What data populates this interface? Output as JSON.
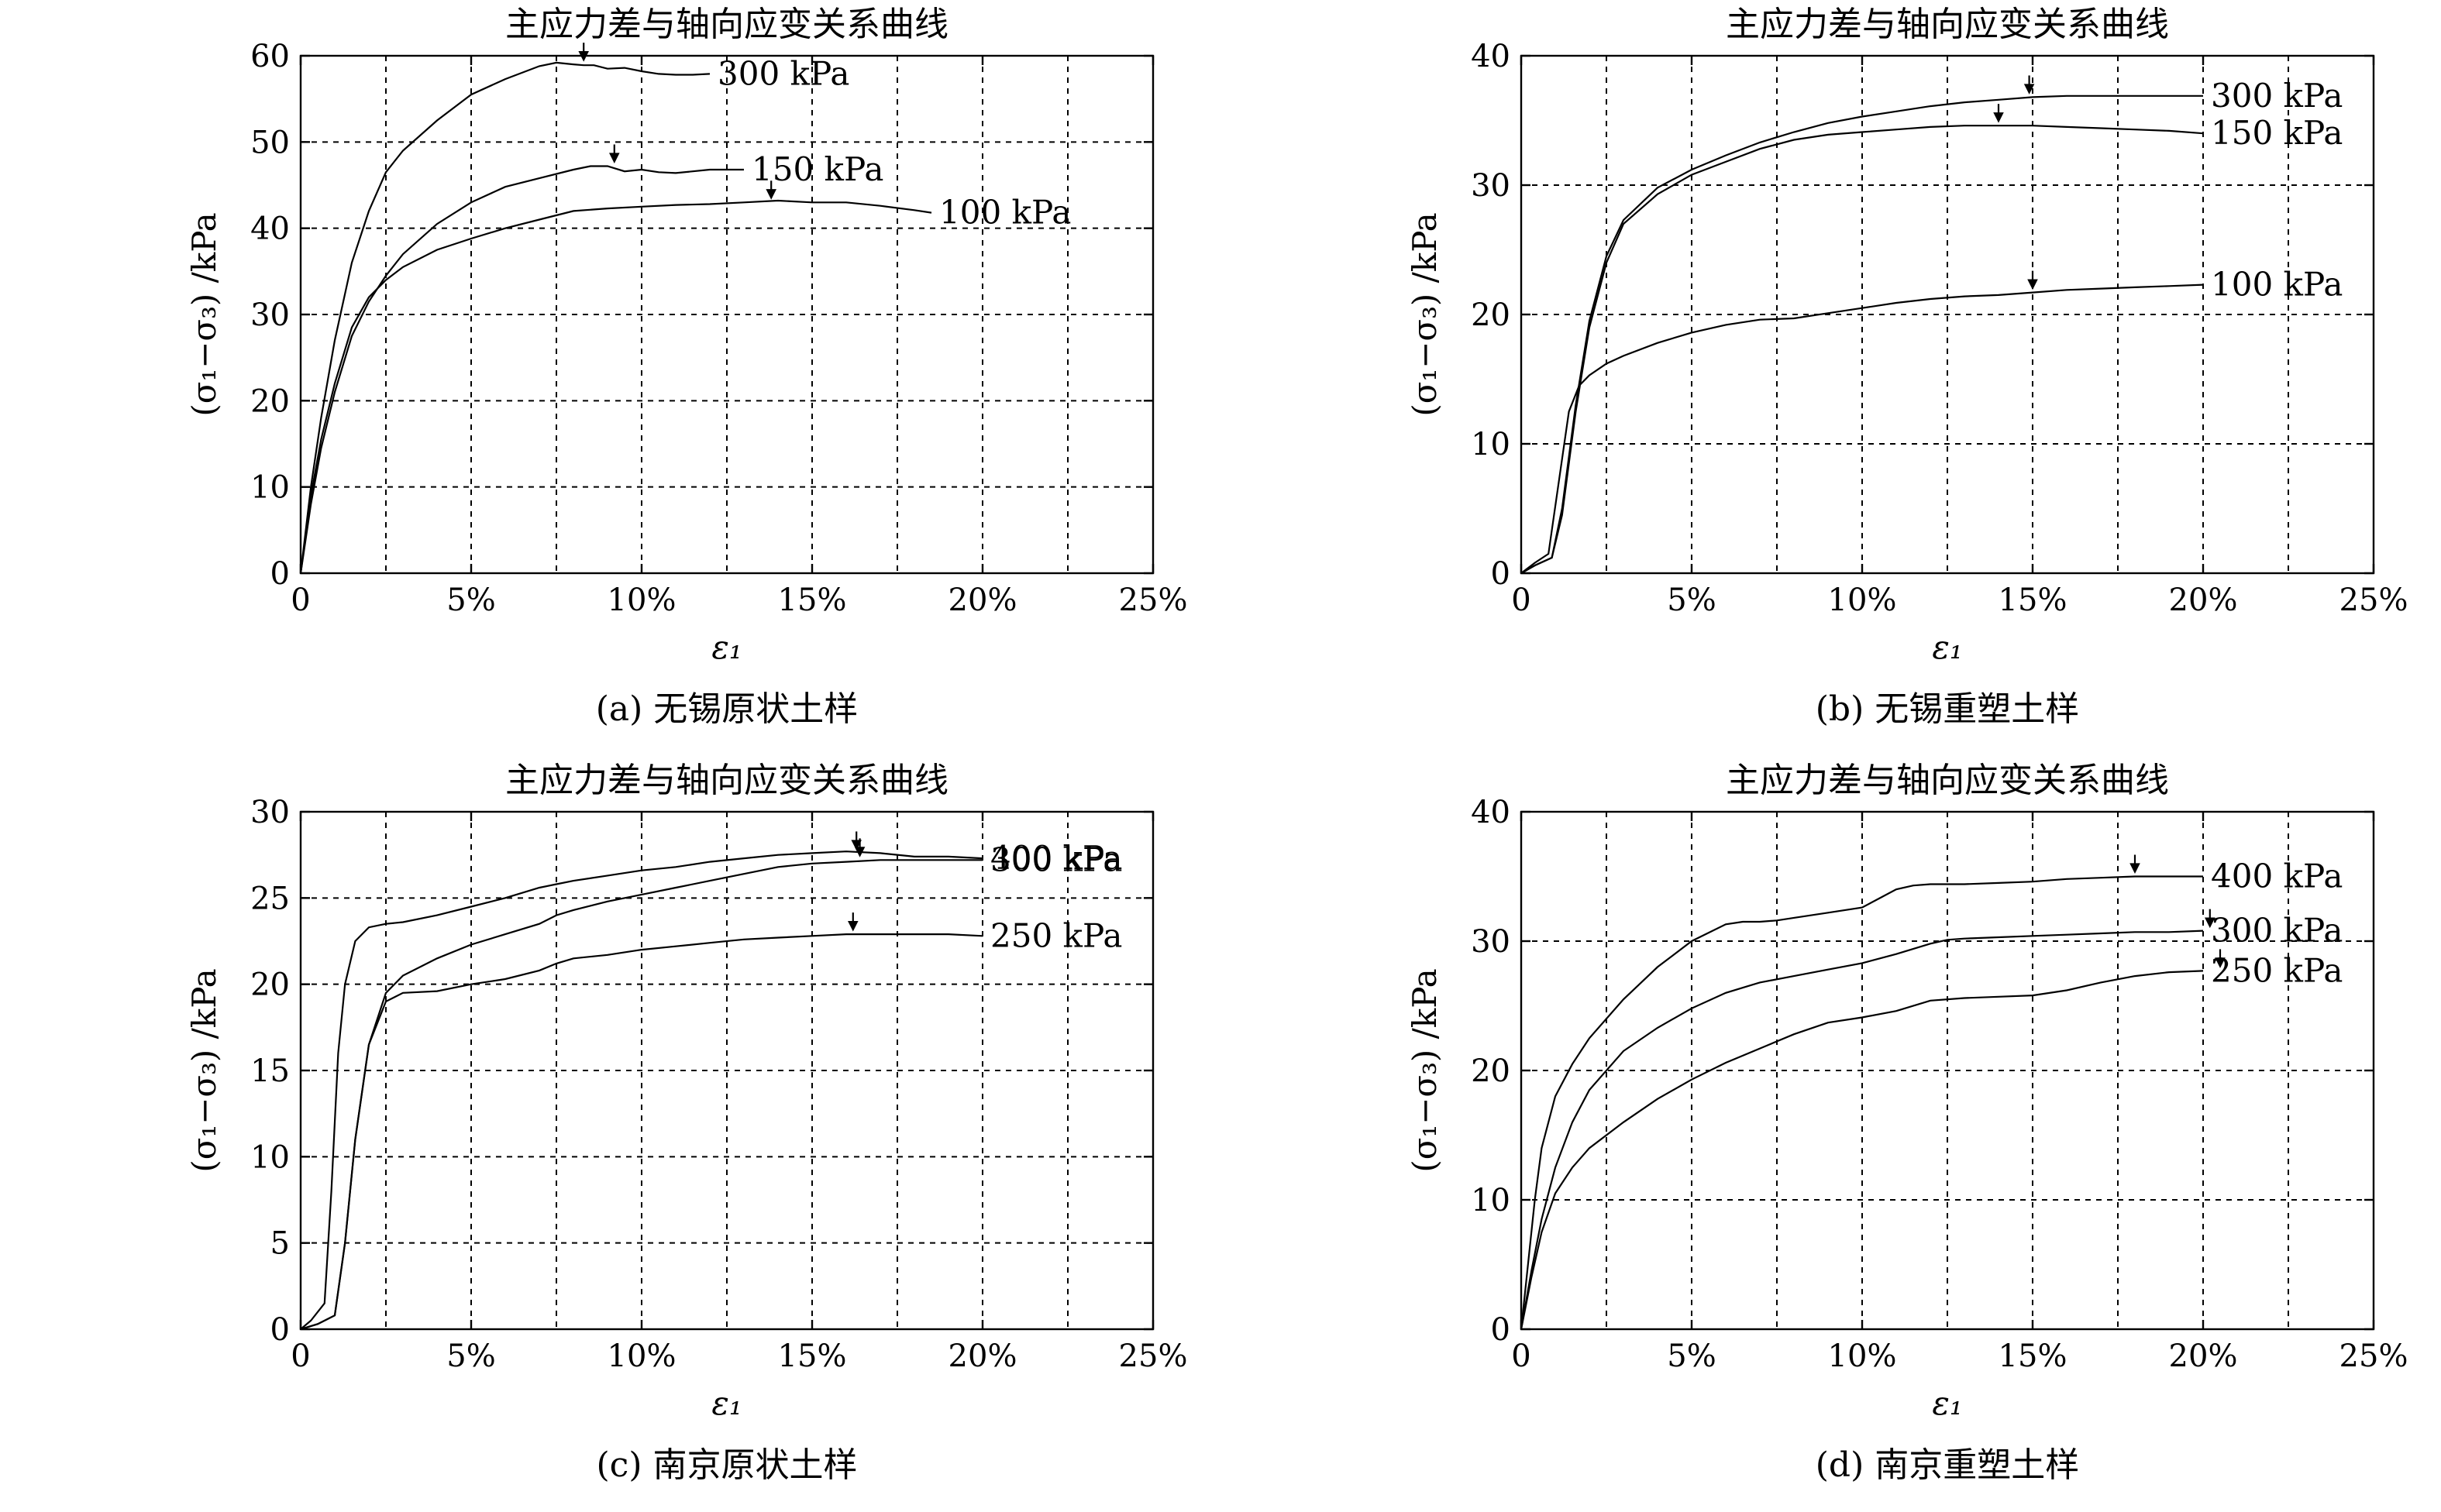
{
  "chart_data": [
    {
      "id": "a",
      "type": "line",
      "title": "主应力差与轴向应变关系曲线",
      "caption": "(a) 无锡原状土样",
      "xlabel": "ε₁",
      "ylabel": "(σ₁−σ₃) /kPa",
      "xlim": [
        0,
        25
      ],
      "ylim": [
        0,
        60
      ],
      "xticks": [
        0,
        5,
        10,
        15,
        20,
        25
      ],
      "xtick_labels": [
        "0",
        "5%",
        "10%",
        "15%",
        "20%",
        "25%"
      ],
      "yticks": [
        0,
        10,
        20,
        30,
        40,
        50,
        60
      ],
      "ytick_labels": [
        "0",
        "10",
        "20",
        "30",
        "40",
        "50",
        "60"
      ],
      "grid": true,
      "series": [
        {
          "name": "300 kPa",
          "x": [
            0,
            0.3,
            0.6,
            1.0,
            1.5,
            2.0,
            2.5,
            3.0,
            4.0,
            5.0,
            6.0,
            7.0,
            7.5,
            8.0,
            8.3,
            8.6,
            9.0,
            9.5,
            10.0,
            10.5,
            11.0,
            11.5,
            12.0
          ],
          "y": [
            0,
            10,
            18,
            27,
            36,
            42,
            46.5,
            49,
            52.5,
            55.5,
            57.3,
            58.8,
            59.2,
            59,
            58.9,
            58.9,
            58.5,
            58.6,
            58.2,
            57.9,
            57.8,
            57.8,
            57.9
          ]
        },
        {
          "name": "150 kPa",
          "x": [
            0,
            0.3,
            0.6,
            1.0,
            1.5,
            2.0,
            2.5,
            3.0,
            4.0,
            5.0,
            6.0,
            7.0,
            8.0,
            8.5,
            9.0,
            9.5,
            10.0,
            10.5,
            11.0,
            12.0,
            13.0
          ],
          "y": [
            0,
            8,
            14.5,
            21,
            27.5,
            31.5,
            34.5,
            37,
            40.5,
            43,
            44.8,
            45.8,
            46.8,
            47.2,
            47.2,
            46.6,
            46.8,
            46.5,
            46.4,
            46.8,
            46.8
          ]
        },
        {
          "name": "100 kPa",
          "x": [
            0,
            0.3,
            0.6,
            1.0,
            1.5,
            2.0,
            2.5,
            3.0,
            4.0,
            5.0,
            6.0,
            7.0,
            8.0,
            9.0,
            10.0,
            11.0,
            12.0,
            13.0,
            14.0,
            15.0,
            16.0,
            17.0,
            18.0,
            18.5
          ],
          "y": [
            0,
            9,
            15.5,
            22,
            28.5,
            32,
            34,
            35.5,
            37.5,
            38.8,
            40,
            41,
            42,
            42.3,
            42.5,
            42.7,
            42.8,
            43,
            43.2,
            43,
            43,
            42.6,
            42.1,
            41.8
          ]
        }
      ],
      "peak_markers": [
        {
          "series": "300 kPa",
          "x": 8.3,
          "y": 59
        },
        {
          "series": "150 kPa",
          "x": 9.2,
          "y": 47.2
        },
        {
          "series": "100 kPa",
          "x": 13.8,
          "y": 43
        }
      ]
    },
    {
      "id": "b",
      "type": "line",
      "title": "主应力差与轴向应变关系曲线",
      "caption": "(b) 无锡重塑土样",
      "xlabel": "ε₁",
      "ylabel": "(σ₁−σ₃) /kPa",
      "xlim": [
        0,
        25
      ],
      "ylim": [
        0,
        40
      ],
      "xticks": [
        0,
        5,
        10,
        15,
        20,
        25
      ],
      "xtick_labels": [
        "0",
        "5%",
        "10%",
        "15%",
        "20%",
        "25%"
      ],
      "yticks": [
        0,
        10,
        20,
        30,
        40
      ],
      "ytick_labels": [
        "0",
        "10",
        "20",
        "30",
        "40"
      ],
      "grid": true,
      "series": [
        {
          "name": "300 kPa",
          "x": [
            0,
            0.4,
            0.9,
            1.2,
            1.6,
            2.0,
            2.5,
            3.0,
            4.0,
            5.0,
            6.0,
            7.0,
            8.0,
            9.0,
            10.0,
            11.0,
            12.0,
            13.0,
            14.0,
            15.0,
            16.0,
            17.0,
            18.0,
            19.0,
            20.0
          ],
          "y": [
            0,
            0.6,
            1.2,
            5,
            13,
            19.5,
            24.5,
            27.3,
            29.8,
            31.2,
            32.3,
            33.3,
            34.1,
            34.8,
            35.3,
            35.7,
            36.1,
            36.4,
            36.6,
            36.8,
            36.9,
            36.9,
            36.9,
            36.9,
            36.9
          ]
        },
        {
          "name": "150 kPa",
          "x": [
            0,
            0.4,
            0.9,
            1.2,
            1.6,
            2.0,
            2.5,
            3.0,
            4.0,
            5.0,
            6.0,
            7.0,
            8.0,
            9.0,
            10.0,
            11.0,
            12.0,
            13.0,
            14.0,
            15.0,
            16.0,
            17.0,
            18.0,
            19.0,
            20.0
          ],
          "y": [
            0,
            0.6,
            1.2,
            4.5,
            12.5,
            19,
            24,
            27,
            29.3,
            30.8,
            31.8,
            32.8,
            33.5,
            33.9,
            34.1,
            34.3,
            34.5,
            34.6,
            34.6,
            34.6,
            34.5,
            34.4,
            34.3,
            34.2,
            34.0
          ]
        },
        {
          "name": "100 kPa",
          "x": [
            0,
            0.4,
            0.8,
            1.1,
            1.4,
            1.7,
            2.0,
            2.5,
            3.0,
            4.0,
            5.0,
            6.0,
            7.0,
            8.0,
            9.0,
            10.0,
            11.0,
            12.0,
            13.0,
            14.0,
            15.0,
            16.0,
            17.0,
            18.0,
            19.0,
            20.0
          ],
          "y": [
            0,
            0.8,
            1.5,
            7,
            12.5,
            14.5,
            15.3,
            16.2,
            16.8,
            17.8,
            18.6,
            19.2,
            19.6,
            19.7,
            20.1,
            20.5,
            20.9,
            21.2,
            21.4,
            21.5,
            21.7,
            21.9,
            22.0,
            22.1,
            22.2,
            22.3
          ]
        }
      ],
      "peak_markers": [
        {
          "series": "300 kPa",
          "x": 14.9,
          "y": 36.8
        },
        {
          "series": "150 kPa",
          "x": 14.0,
          "y": 34.6
        },
        {
          "series": "100 kPa",
          "x": 15.0,
          "y": 21.7
        }
      ]
    },
    {
      "id": "c",
      "type": "line",
      "title": "主应力差与轴向应变关系曲线",
      "caption": "(c) 南京原状土样",
      "xlabel": "ε₁",
      "ylabel": "(σ₁−σ₃) /kPa",
      "xlim": [
        0,
        25
      ],
      "ylim": [
        0,
        30
      ],
      "xticks": [
        0,
        5,
        10,
        15,
        20,
        25
      ],
      "xtick_labels": [
        "0",
        "5%",
        "10%",
        "15%",
        "20%",
        "25%"
      ],
      "yticks": [
        0,
        5,
        10,
        15,
        20,
        25,
        30
      ],
      "ytick_labels": [
        "0",
        "5",
        "10",
        "15",
        "20",
        "25",
        "30"
      ],
      "grid": true,
      "series": [
        {
          "name": "400 kPa",
          "x": [
            0,
            0.3,
            0.7,
            0.9,
            1.1,
            1.3,
            1.6,
            2.0,
            2.5,
            3.0,
            4.0,
            5.0,
            6.0,
            7.0,
            7.5,
            8.0,
            9.0,
            10.0,
            11.0,
            12.0,
            13.0,
            14.0,
            15.0,
            16.0,
            17.0,
            18.0,
            19.0,
            20.0
          ],
          "y": [
            0,
            0.5,
            1.5,
            8,
            16,
            20,
            22.5,
            23.3,
            23.5,
            23.6,
            24,
            24.5,
            25,
            25.6,
            25.8,
            26,
            26.3,
            26.6,
            26.8,
            27.1,
            27.3,
            27.5,
            27.6,
            27.7,
            27.6,
            27.4,
            27.4,
            27.3
          ]
        },
        {
          "name": "300 kPa",
          "x": [
            0,
            0.5,
            1.0,
            1.3,
            1.6,
            2.0,
            2.5,
            3.0,
            4.0,
            5.0,
            6.0,
            7.0,
            7.5,
            8.0,
            9.0,
            10.0,
            11.0,
            12.0,
            13.0,
            14.0,
            15.0,
            16.0,
            17.0,
            18.0,
            19.0,
            20.0
          ],
          "y": [
            0,
            0.3,
            0.8,
            5,
            11,
            16.5,
            19.5,
            20.5,
            21.5,
            22.3,
            22.9,
            23.5,
            24,
            24.3,
            24.8,
            25.2,
            25.6,
            26,
            26.4,
            26.8,
            27,
            27.1,
            27.2,
            27.2,
            27.2,
            27.2
          ]
        },
        {
          "name": "250 kPa",
          "x": [
            0,
            0.5,
            1.0,
            1.3,
            1.6,
            2.0,
            2.5,
            3.0,
            4.0,
            5.0,
            6.0,
            7.0,
            7.5,
            8.0,
            9.0,
            10.0,
            11.0,
            12.0,
            13.0,
            14.0,
            15.0,
            16.0,
            17.0,
            18.0,
            19.0,
            20.0
          ],
          "y": [
            0,
            0.3,
            0.8,
            5,
            11,
            16.5,
            19,
            19.5,
            19.6,
            20,
            20.3,
            20.8,
            21.2,
            21.5,
            21.7,
            22,
            22.2,
            22.4,
            22.6,
            22.7,
            22.8,
            22.9,
            22.9,
            22.9,
            22.9,
            22.8
          ]
        }
      ],
      "peak_markers": [
        {
          "series": "400 kPa",
          "x": 16.3,
          "y": 27.6
        },
        {
          "series": "300 kPa",
          "x": 16.4,
          "y": 27.2
        },
        {
          "series": "250 kPa",
          "x": 16.2,
          "y": 22.9
        }
      ]
    },
    {
      "id": "d",
      "type": "line",
      "title": "主应力差与轴向应变关系曲线",
      "caption": "(d) 南京重塑土样",
      "xlabel": "ε₁",
      "ylabel": "(σ₁−σ₃) /kPa",
      "xlim": [
        0,
        25
      ],
      "ylim": [
        0,
        40
      ],
      "xticks": [
        0,
        5,
        10,
        15,
        20,
        25
      ],
      "xtick_labels": [
        "0",
        "5%",
        "10%",
        "15%",
        "20%",
        "25%"
      ],
      "yticks": [
        0,
        10,
        20,
        30,
        40
      ],
      "ytick_labels": [
        "0",
        "10",
        "20",
        "30",
        "40"
      ],
      "grid": true,
      "series": [
        {
          "name": "400 kPa",
          "x": [
            0,
            0.2,
            0.4,
            0.6,
            1.0,
            1.5,
            2.0,
            3.0,
            4.0,
            5.0,
            6.0,
            6.5,
            7.0,
            7.5,
            8.0,
            9.0,
            10.0,
            10.5,
            11.0,
            11.5,
            12.0,
            13.0,
            14.0,
            15.0,
            16.0,
            17.0,
            18.0,
            19.0,
            20.0
          ],
          "y": [
            0,
            5,
            10,
            14,
            18,
            20.5,
            22.5,
            25.5,
            28,
            30,
            31.3,
            31.5,
            31.5,
            31.6,
            31.8,
            32.2,
            32.6,
            33.3,
            34,
            34.3,
            34.4,
            34.4,
            34.5,
            34.6,
            34.8,
            34.9,
            35.0,
            35.0,
            35.0
          ]
        },
        {
          "name": "300 kPa",
          "x": [
            0,
            0.3,
            0.6,
            1.0,
            1.5,
            2.0,
            3.0,
            4.0,
            5.0,
            6.0,
            7.0,
            8.0,
            9.0,
            10.0,
            11.0,
            12.0,
            12.5,
            13.0,
            14.0,
            15.0,
            16.0,
            17.0,
            18.0,
            19.0,
            20.0
          ],
          "y": [
            0,
            4.5,
            8.5,
            12.5,
            16,
            18.5,
            21.5,
            23.3,
            24.8,
            26,
            26.8,
            27.3,
            27.8,
            28.3,
            29,
            29.8,
            30.1,
            30.2,
            30.3,
            30.4,
            30.5,
            30.6,
            30.7,
            30.7,
            30.8
          ]
        },
        {
          "name": "250 kPa",
          "x": [
            0,
            0.3,
            0.6,
            1.0,
            1.5,
            2.0,
            3.0,
            4.0,
            5.0,
            6.0,
            7.0,
            8.0,
            9.0,
            10.0,
            11.0,
            12.0,
            13.0,
            14.0,
            15.0,
            16.0,
            17.0,
            18.0,
            19.0,
            20.0
          ],
          "y": [
            0,
            4,
            7.5,
            10.5,
            12.5,
            14,
            16,
            17.8,
            19.3,
            20.6,
            21.7,
            22.8,
            23.7,
            24.1,
            24.6,
            25.4,
            25.6,
            25.7,
            25.8,
            26.2,
            26.8,
            27.3,
            27.6,
            27.7
          ]
        }
      ],
      "peak_markers": [
        {
          "series": "400 kPa",
          "x": 18.0,
          "y": 35.0
        },
        {
          "series": "300 kPa",
          "x": 20.2,
          "y": 30.8
        },
        {
          "series": "250 kPa",
          "x": 20.5,
          "y": 27.7
        }
      ]
    }
  ]
}
